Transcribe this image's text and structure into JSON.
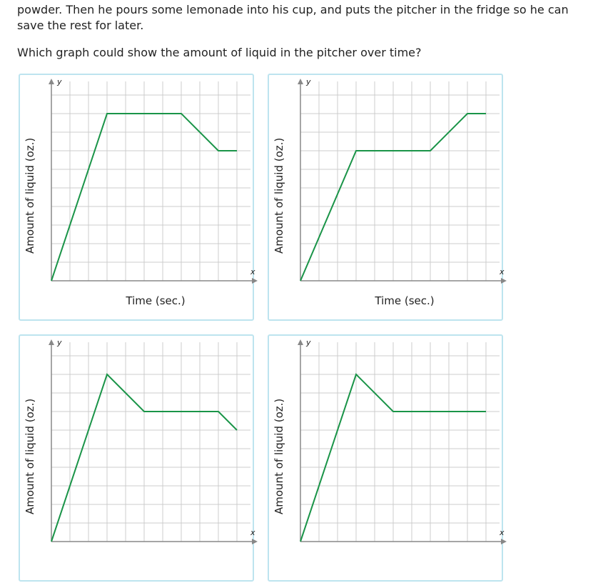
{
  "question": {
    "paragraph": "powder. Then he pours some lemonade into his cup, and puts the pitcher in the fridge so he can save the rest for later.",
    "prompt": "Which graph could show the amount of liquid in the pitcher over time?"
  },
  "colors": {
    "line": "#1a9448",
    "grid": "#cccccc",
    "axis": "#888888",
    "card_border": "#bde4ef"
  },
  "options": [
    {
      "ylabel": "Amount of liquid (oz.)",
      "xlabel": "Time (sec.)",
      "chart_data": {
        "type": "line",
        "x_axis_letter": "x",
        "y_axis_letter": "y",
        "xlim": [
          0,
          10.5
        ],
        "ylim": [
          0,
          10.5
        ],
        "grid": true,
        "x": [
          0,
          3,
          7,
          9,
          10
        ],
        "y": [
          0,
          9,
          9,
          7,
          7
        ]
      }
    },
    {
      "ylabel": "Amount of liquid (oz.)",
      "xlabel": "Time (sec.)",
      "chart_data": {
        "type": "line",
        "x_axis_letter": "x",
        "y_axis_letter": "y",
        "xlim": [
          0,
          10.5
        ],
        "ylim": [
          0,
          10.5
        ],
        "grid": true,
        "x": [
          0,
          3,
          7,
          9,
          10
        ],
        "y": [
          0,
          7,
          7,
          9,
          9
        ]
      }
    },
    {
      "ylabel": "Amount of liquid (oz.)",
      "xlabel": "",
      "chart_data": {
        "type": "line",
        "x_axis_letter": "x",
        "y_axis_letter": "y",
        "xlim": [
          0,
          10.5
        ],
        "ylim": [
          0,
          10.5
        ],
        "grid": true,
        "x": [
          0,
          3,
          5,
          9,
          10
        ],
        "y": [
          0,
          9,
          7,
          7,
          6
        ]
      }
    },
    {
      "ylabel": "Amount of liquid (oz.)",
      "xlabel": "",
      "chart_data": {
        "type": "line",
        "x_axis_letter": "x",
        "y_axis_letter": "y",
        "xlim": [
          0,
          10.5
        ],
        "ylim": [
          0,
          10.5
        ],
        "grid": true,
        "x": [
          0,
          3,
          5,
          10
        ],
        "y": [
          0,
          9,
          7,
          7
        ]
      }
    }
  ]
}
